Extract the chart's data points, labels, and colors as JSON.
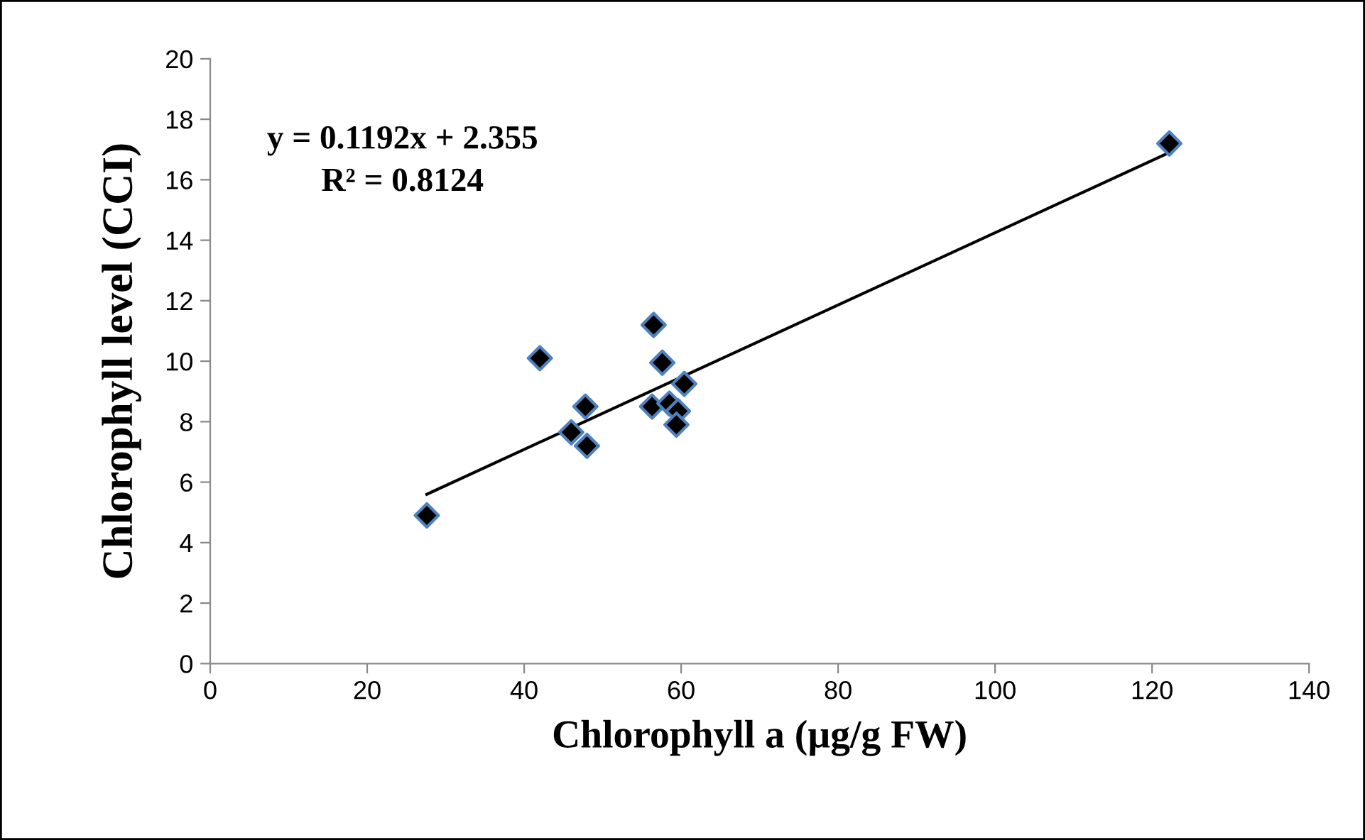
{
  "chart_data": {
    "type": "scatter",
    "xlabel": "Chlorophyll a (µg/g FW)",
    "ylabel": "Chlorophyll level (CCI)",
    "xlim": [
      0,
      140
    ],
    "xticks": [
      0,
      20,
      40,
      60,
      80,
      100,
      120,
      140
    ],
    "ylim": [
      0,
      20
    ],
    "yticks": [
      0,
      2,
      4,
      6,
      8,
      10,
      12,
      14,
      16,
      18,
      20
    ],
    "grid": false,
    "legend": false,
    "annotations": [
      "y = 0.1192x + 2.355",
      "R² = 0.8124"
    ],
    "series": [
      {
        "marker": "diamond",
        "color": "#000000",
        "x": [
          27.6,
          42.0,
          46.0,
          48.0,
          47.8,
          56.5,
          57.6,
          56.3,
          58.5,
          59.6,
          59.4,
          60.4,
          122.2
        ],
        "values": [
          4.9,
          10.1,
          7.65,
          7.2,
          8.5,
          11.2,
          9.95,
          8.5,
          8.6,
          8.35,
          7.9,
          9.25,
          17.2
        ]
      },
      {
        "type": "line",
        "color": "#000000",
        "line_style": "solid",
        "x": [
          27.6,
          122.2
        ],
        "values": [
          5.6,
          16.9
        ]
      }
    ]
  }
}
